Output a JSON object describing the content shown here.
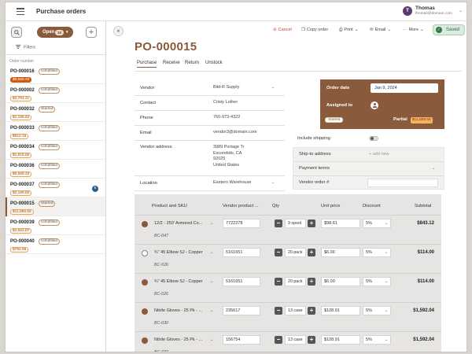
{
  "header": {
    "title": "Purchase orders",
    "user": {
      "initial": "T",
      "name": "Thomas",
      "email": "thomas@domain.com"
    }
  },
  "sidebar": {
    "filter_label": "Open",
    "filter_count": "10",
    "filters_label": "Filters",
    "column_header": "Order number",
    "orders": [
      {
        "number": "PO-000016",
        "status": "Unfulfilled",
        "amount": "$5,568.33",
        "amount_style": "solid",
        "badge": "",
        "selected": false
      },
      {
        "number": "PO-000002",
        "status": "Unfulfilled",
        "amount": "$4,781.31",
        "amount_style": "outline",
        "badge": "",
        "selected": false
      },
      {
        "number": "PO-000032",
        "status": "Started",
        "amount": "$1,185.63",
        "amount_style": "outline",
        "badge": "",
        "selected": false
      },
      {
        "number": "PO-000033",
        "status": "Unfulfilled",
        "amount": "$612.15",
        "amount_style": "outline",
        "badge": "",
        "selected": false
      },
      {
        "number": "PO-000034",
        "status": "Unfulfilled",
        "amount": "$1,815.66",
        "amount_style": "outline",
        "badge": "",
        "selected": false
      },
      {
        "number": "PO-000036",
        "status": "Unfulfilled",
        "amount": "$5,568.33",
        "amount_style": "outline",
        "badge": "",
        "selected": false
      },
      {
        "number": "PO-000037",
        "status": "Unfulfilled",
        "amount": "$2,169.60",
        "amount_style": "outline",
        "badge": "5",
        "selected": false
      },
      {
        "number": "PO-000015",
        "status": "Started",
        "amount": "$11,889.56",
        "amount_style": "outline",
        "badge": "",
        "selected": true
      },
      {
        "number": "PO-000039",
        "status": "Unfulfilled",
        "amount": "$4,561.87",
        "amount_style": "outline",
        "badge": "",
        "selected": false
      },
      {
        "number": "PO-000040",
        "status": "Unfulfilled",
        "amount": "$794.56",
        "amount_style": "outline",
        "badge": "",
        "selected": false
      }
    ]
  },
  "toolbar": {
    "cancel": "Cancel",
    "copy_order": "Copy order",
    "print": "Print",
    "email": "Email",
    "more": "More",
    "saved": "Saved"
  },
  "order": {
    "number": "PO-000015",
    "tabs": [
      "Purchase",
      "Receive",
      "Return",
      "Unstock"
    ],
    "active_tab": "Purchase",
    "fields": {
      "vendor_label": "Vendor",
      "vendor": "Bild-R Supply",
      "contact_label": "Contact",
      "contact": "Cristy Lother",
      "phone_label": "Phone",
      "phone": "760-973-4322",
      "email_label": "Email",
      "email": "vendor3@domain.com",
      "address_label": "Vendor address",
      "address_line1": "3989 Portage Tr",
      "address_line2": "Escondido, CA",
      "address_line3": "92025",
      "address_line4": "United States",
      "location_label": "Location",
      "location": "Eastern Warehouse"
    },
    "summary": {
      "order_date_label": "Order date",
      "order_date": "Jan 9, 2024",
      "assigned_label": "Assigned to",
      "status": "Started",
      "partial_label": "Partial",
      "partial_amount": "$11,889.56"
    },
    "include_shipping_label": "Include shipping",
    "include_shipping": false,
    "ship_to_label": "Ship-to address",
    "ship_to_placeholder": "+ add new",
    "payment_terms_label": "Payment terms",
    "vendor_order_label": "Vendor order #"
  },
  "line_items": {
    "headers": {
      "product": "Product and SKU",
      "vendor_product": "Vendor product ...",
      "qty": "Qty",
      "unit_price": "Unit price",
      "discount": "Discount",
      "subtotal": "Subtotal"
    },
    "rows": [
      {
        "product": "12/2 - 250' Armored Co...",
        "sku": "BC-047",
        "vendor_product": "7722278",
        "qty": "9 spool",
        "unit_price": "$98.61",
        "discount": "5%",
        "subtotal": "$843.12",
        "filled": true
      },
      {
        "product": "¾\" 45 Elbow SJ - Copper",
        "sku": "BC-026",
        "vendor_product": "5161651",
        "qty": "20 pack",
        "unit_price": "$6.00",
        "discount": "5%",
        "subtotal": "$114.00",
        "filled": false
      },
      {
        "product": "¾\" 45 Elbow SJ - Copper",
        "sku": "BC-026",
        "vendor_product": "5161651",
        "qty": "20 pack",
        "unit_price": "$6.00",
        "discount": "5%",
        "subtotal": "$114.00",
        "filled": true
      },
      {
        "product": "Nitrile Gloves - 25 Pk - ...",
        "sku": "BC-030",
        "vendor_product": "235617",
        "qty": "13 case",
        "unit_price": "$128.91",
        "discount": "5%",
        "subtotal": "$1,592.04",
        "filled": true
      },
      {
        "product": "Nitrile Gloves - 25 Pk - ...",
        "sku": "BC-032",
        "vendor_product": "156754",
        "qty": "13 case",
        "unit_price": "$128.91",
        "discount": "5%",
        "subtotal": "$1,592.04",
        "filled": true
      }
    ]
  },
  "colors": {
    "brand": "#8a5a3c",
    "cancel": "#d33b2b",
    "saved": "#2f7a45",
    "amount_solid": "#cc5a12"
  }
}
